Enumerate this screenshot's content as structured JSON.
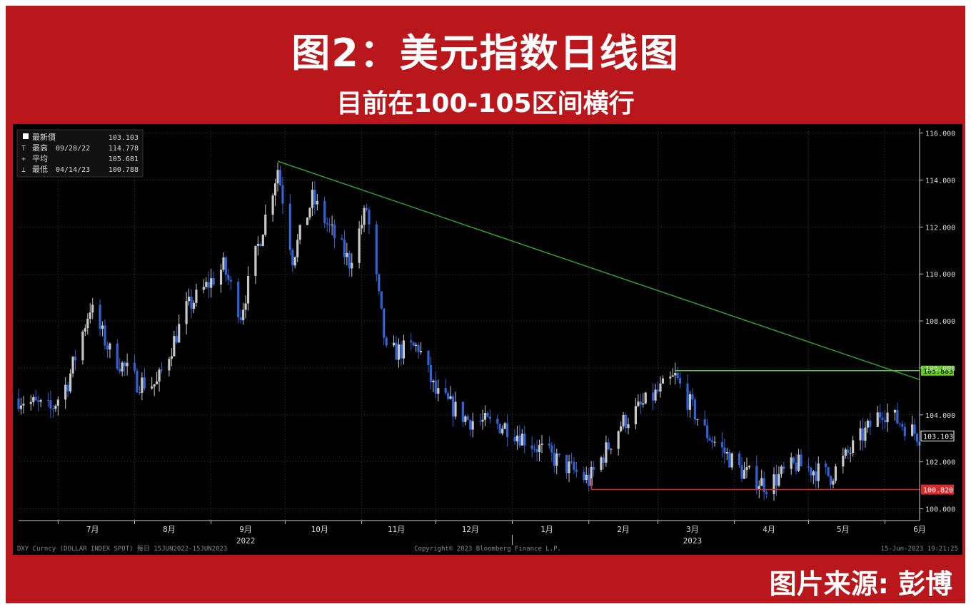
{
  "header": {
    "title": "图2：美元指数日线图",
    "subtitle": "目前在100-105区间横行"
  },
  "footer": {
    "source": "图片来源: 彭博",
    "bloomberg_left": "DXY Curncy (DOLLAR INDEX SPOT)  每日 15JUN2022-15JUN2023",
    "bloomberg_center": "Copyright© 2023 Bloomberg Finance L.P.",
    "bloomberg_right": "15-Jun-2023 19:21:25"
  },
  "legend": {
    "last_label": "最新價",
    "last_value": "103.103",
    "high_label": "最高",
    "high_date": "09/28/22",
    "high_value": "114.778",
    "avg_label": "平均",
    "avg_value": "105.681",
    "low_label": "最低",
    "low_date": "04/14/23",
    "low_value": "100.788"
  },
  "colors": {
    "background": "#000000",
    "up_candle": "#c8c8c8",
    "down_candle": "#2f63d6",
    "trendline": "#2e9e2e",
    "resistance": "#66cc22",
    "support": "#d92b2b",
    "frame": "#b9171b"
  },
  "chart_data": {
    "type": "candlestick",
    "title": "",
    "ylim": [
      99.5,
      116.2
    ],
    "y_ticks": [
      "116.000",
      "114.000",
      "112.000",
      "110.000",
      "108.000",
      "106.000",
      "104.000",
      "102.000",
      "100.000"
    ],
    "y_tick_values": [
      116,
      114,
      112,
      110,
      108,
      106,
      104,
      102,
      100
    ],
    "x_range": [
      "2022-06-15",
      "2023-06-15"
    ],
    "month_ticks": [
      {
        "label": "7月",
        "date": "2022-07-15"
      },
      {
        "label": "8月",
        "date": "2022-08-15"
      },
      {
        "label": "9月",
        "date": "2022-09-15"
      },
      {
        "label": "10月",
        "date": "2022-10-15"
      },
      {
        "label": "11月",
        "date": "2022-11-15"
      },
      {
        "label": "12月",
        "date": "2022-12-15"
      },
      {
        "label": "1月",
        "date": "2023-01-15"
      },
      {
        "label": "2月",
        "date": "2023-02-15"
      },
      {
        "label": "3月",
        "date": "2023-03-15"
      },
      {
        "label": "4月",
        "date": "2023-04-15"
      },
      {
        "label": "5月",
        "date": "2023-05-15"
      },
      {
        "label": "6月",
        "date": "2023-06-15"
      }
    ],
    "year_labels": [
      {
        "label": "2022",
        "date": "2022-09-15"
      },
      {
        "label": "2023",
        "date": "2023-03-15"
      }
    ],
    "grid": true,
    "price_path": [
      {
        "date": "2022-06-15",
        "value": 104.7
      },
      {
        "date": "2022-06-28",
        "value": 104.2
      },
      {
        "date": "2022-07-05",
        "value": 105.4
      },
      {
        "date": "2022-07-14",
        "value": 108.6
      },
      {
        "date": "2022-07-22",
        "value": 106.7
      },
      {
        "date": "2022-08-02",
        "value": 105.4
      },
      {
        "date": "2022-08-10",
        "value": 105.3
      },
      {
        "date": "2022-08-22",
        "value": 108.5
      },
      {
        "date": "2022-09-06",
        "value": 110.3
      },
      {
        "date": "2022-09-13",
        "value": 108.3
      },
      {
        "date": "2022-09-28",
        "value": 114.5
      },
      {
        "date": "2022-10-04",
        "value": 110.7
      },
      {
        "date": "2022-10-12",
        "value": 113.2
      },
      {
        "date": "2022-10-27",
        "value": 110.5
      },
      {
        "date": "2022-11-03",
        "value": 112.8
      },
      {
        "date": "2022-11-11",
        "value": 106.6
      },
      {
        "date": "2022-11-24",
        "value": 106.9
      },
      {
        "date": "2022-12-01",
        "value": 104.9
      },
      {
        "date": "2022-12-14",
        "value": 103.8
      },
      {
        "date": "2022-12-30",
        "value": 103.5
      },
      {
        "date": "2023-01-17",
        "value": 102.2
      },
      {
        "date": "2023-02-01",
        "value": 101.2
      },
      {
        "date": "2023-02-14",
        "value": 103.6
      },
      {
        "date": "2023-03-08",
        "value": 105.6
      },
      {
        "date": "2023-03-20",
        "value": 103.3
      },
      {
        "date": "2023-04-04",
        "value": 101.6
      },
      {
        "date": "2023-04-14",
        "value": 101.0
      },
      {
        "date": "2023-04-26",
        "value": 101.9
      },
      {
        "date": "2023-05-10",
        "value": 101.4
      },
      {
        "date": "2023-05-31",
        "value": 104.2
      },
      {
        "date": "2023-06-15",
        "value": 103.1
      }
    ],
    "annotations": {
      "trendline": {
        "from": {
          "date": "2022-09-28",
          "value": 114.8
        },
        "to": {
          "date": "2023-06-15",
          "value": 105.5
        }
      },
      "resistance": {
        "value": 105.883,
        "label": "105.883",
        "from": "2023-03-08"
      },
      "support": {
        "value": 100.82,
        "label": "100.820",
        "from": "2023-02-02"
      },
      "last_price": {
        "value": 103.103,
        "label": "103.103"
      }
    }
  }
}
